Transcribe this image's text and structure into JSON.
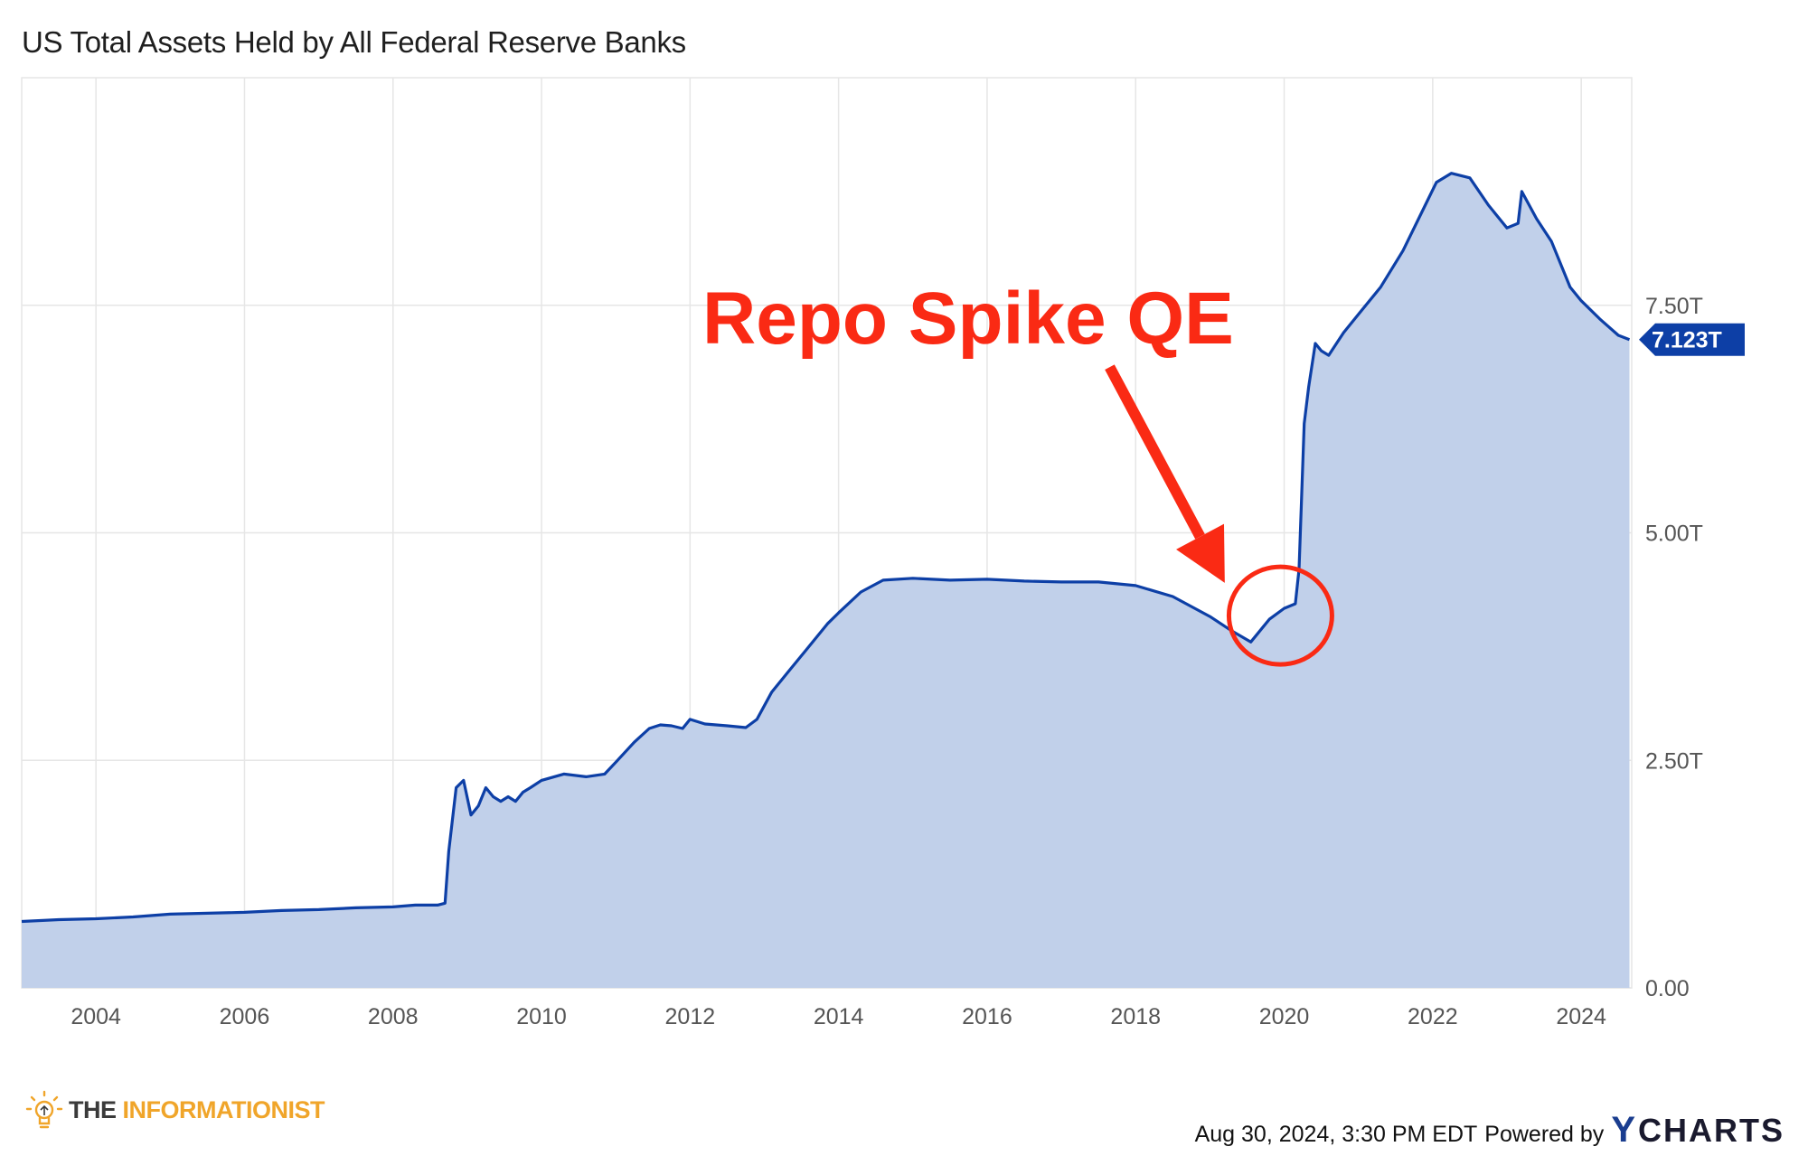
{
  "chart_data": {
    "type": "area",
    "title": "US Total Assets Held by All Federal Reserve Banks",
    "xlabel": "",
    "ylabel": "",
    "x_tick_labels": [
      "2004",
      "2006",
      "2008",
      "2010",
      "2012",
      "2014",
      "2016",
      "2018",
      "2020",
      "2022",
      "2024"
    ],
    "y_tick_labels": [
      "0.00",
      "2.50T",
      "5.00T",
      "7.50T"
    ],
    "y_tick_values": [
      0,
      2.5,
      5.0,
      7.5
    ],
    "xlim": [
      2003.0,
      2024.68
    ],
    "ylim": [
      0,
      10.0
    ],
    "grid": true,
    "x": [
      2003.0,
      2003.5,
      2004.0,
      2004.5,
      2005.0,
      2005.5,
      2006.0,
      2006.5,
      2007.0,
      2007.5,
      2008.0,
      2008.3,
      2008.6,
      2008.7,
      2008.75,
      2008.85,
      2008.95,
      2009.05,
      2009.15,
      2009.25,
      2009.35,
      2009.45,
      2009.55,
      2009.65,
      2009.75,
      2009.85,
      2010.0,
      2010.3,
      2010.6,
      2010.85,
      2011.0,
      2011.25,
      2011.45,
      2011.6,
      2011.75,
      2011.9,
      2012.0,
      2012.2,
      2012.5,
      2012.75,
      2012.9,
      2013.1,
      2013.35,
      2013.6,
      2013.85,
      2014.0,
      2014.3,
      2014.6,
      2015.0,
      2015.5,
      2016.0,
      2016.5,
      2017.0,
      2017.5,
      2018.0,
      2018.5,
      2019.0,
      2019.3,
      2019.55,
      2019.65,
      2019.8,
      2020.0,
      2020.15,
      2020.2,
      2020.27,
      2020.33,
      2020.42,
      2020.5,
      2020.6,
      2020.8,
      2021.0,
      2021.3,
      2021.6,
      2021.9,
      2022.05,
      2022.25,
      2022.5,
      2022.75,
      2023.0,
      2023.15,
      2023.2,
      2023.4,
      2023.6,
      2023.85,
      2024.0,
      2024.25,
      2024.5,
      2024.65
    ],
    "series": [
      {
        "name": "",
        "values": [
          0.73,
          0.75,
          0.76,
          0.78,
          0.81,
          0.82,
          0.83,
          0.85,
          0.86,
          0.88,
          0.89,
          0.91,
          0.91,
          0.93,
          1.5,
          2.2,
          2.28,
          1.9,
          2.0,
          2.2,
          2.1,
          2.05,
          2.1,
          2.05,
          2.15,
          2.2,
          2.28,
          2.35,
          2.32,
          2.35,
          2.48,
          2.7,
          2.85,
          2.89,
          2.88,
          2.85,
          2.95,
          2.9,
          2.88,
          2.86,
          2.95,
          3.25,
          3.5,
          3.75,
          4.0,
          4.12,
          4.35,
          4.48,
          4.5,
          4.48,
          4.49,
          4.47,
          4.46,
          4.46,
          4.42,
          4.3,
          4.08,
          3.92,
          3.8,
          3.9,
          4.05,
          4.17,
          4.22,
          4.6,
          6.2,
          6.6,
          7.08,
          7.0,
          6.95,
          7.2,
          7.4,
          7.7,
          8.1,
          8.6,
          8.85,
          8.95,
          8.9,
          8.6,
          8.35,
          8.4,
          8.75,
          8.45,
          8.2,
          7.7,
          7.55,
          7.35,
          7.17,
          7.123
        ]
      }
    ],
    "last_value_label": "7.123T",
    "colors": {
      "line": "#0d3fa6",
      "fill": "#c1d0ea",
      "grid": "#e6e6e6",
      "annotation": "#fa2a14",
      "badge": "#0d3fa6"
    },
    "annotation": {
      "text": "Repo Spike QE",
      "circle_center": [
        2019.95,
        4.09
      ],
      "arrow_from": [
        2017.65,
        6.82
      ],
      "arrow_to": [
        2019.2,
        4.45
      ]
    }
  },
  "footer": {
    "brand_word1": "THE",
    "brand_word2": "INFORMATIONIST",
    "timestamp": "Aug 30, 2024, 3:30 PM EDT",
    "powered_by": "Powered by",
    "ycharts_y": "Y",
    "ycharts_rest": "CHARTS",
    "brand_icon": "lightbulb-icon"
  }
}
